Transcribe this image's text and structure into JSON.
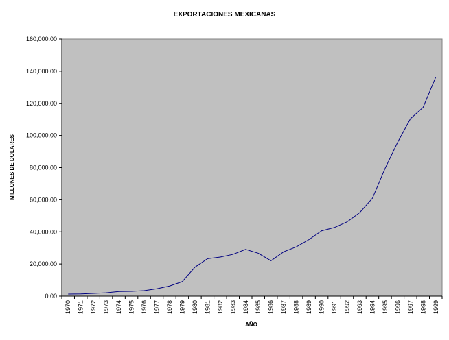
{
  "chart_data": {
    "type": "line",
    "title": "EXPORTACIONES MEXICANAS",
    "xlabel": "AÑO",
    "ylabel": "MILLONES DE DOLARES",
    "ylim": [
      0,
      160000
    ],
    "yticks": [
      0,
      20000,
      40000,
      60000,
      80000,
      100000,
      120000,
      140000,
      160000
    ],
    "ytick_labels": [
      "0.00",
      "20,000.00",
      "40,000.00",
      "60,000.00",
      "80,000.00",
      "100,000.00",
      "120,000.00",
      "140,000.00",
      "160,000.00"
    ],
    "grid": false,
    "legend": "none",
    "plot_background": "#c0c0c0",
    "line_color": "#000080",
    "categories": [
      "1970",
      "1971",
      "1972",
      "1973",
      "1974",
      "1975",
      "1976",
      "1977",
      "1978",
      "1979",
      "1980",
      "1981",
      "1982",
      "1983",
      "1984",
      "1985",
      "1986",
      "1987",
      "1988",
      "1989",
      "1990",
      "1991",
      "1992",
      "1993",
      "1994",
      "1995",
      "1996",
      "1997",
      "1998",
      "1999"
    ],
    "series": [
      {
        "values": [
          1300,
          1400,
          1700,
          2100,
          2900,
          3000,
          3400,
          4600,
          6300,
          9000,
          18000,
          23300,
          24300,
          26000,
          29100,
          26700,
          22000,
          27600,
          30700,
          35200,
          40700,
          42700,
          46200,
          52000,
          60900,
          79500,
          95900,
          110400,
          117500,
          136400
        ]
      }
    ]
  }
}
